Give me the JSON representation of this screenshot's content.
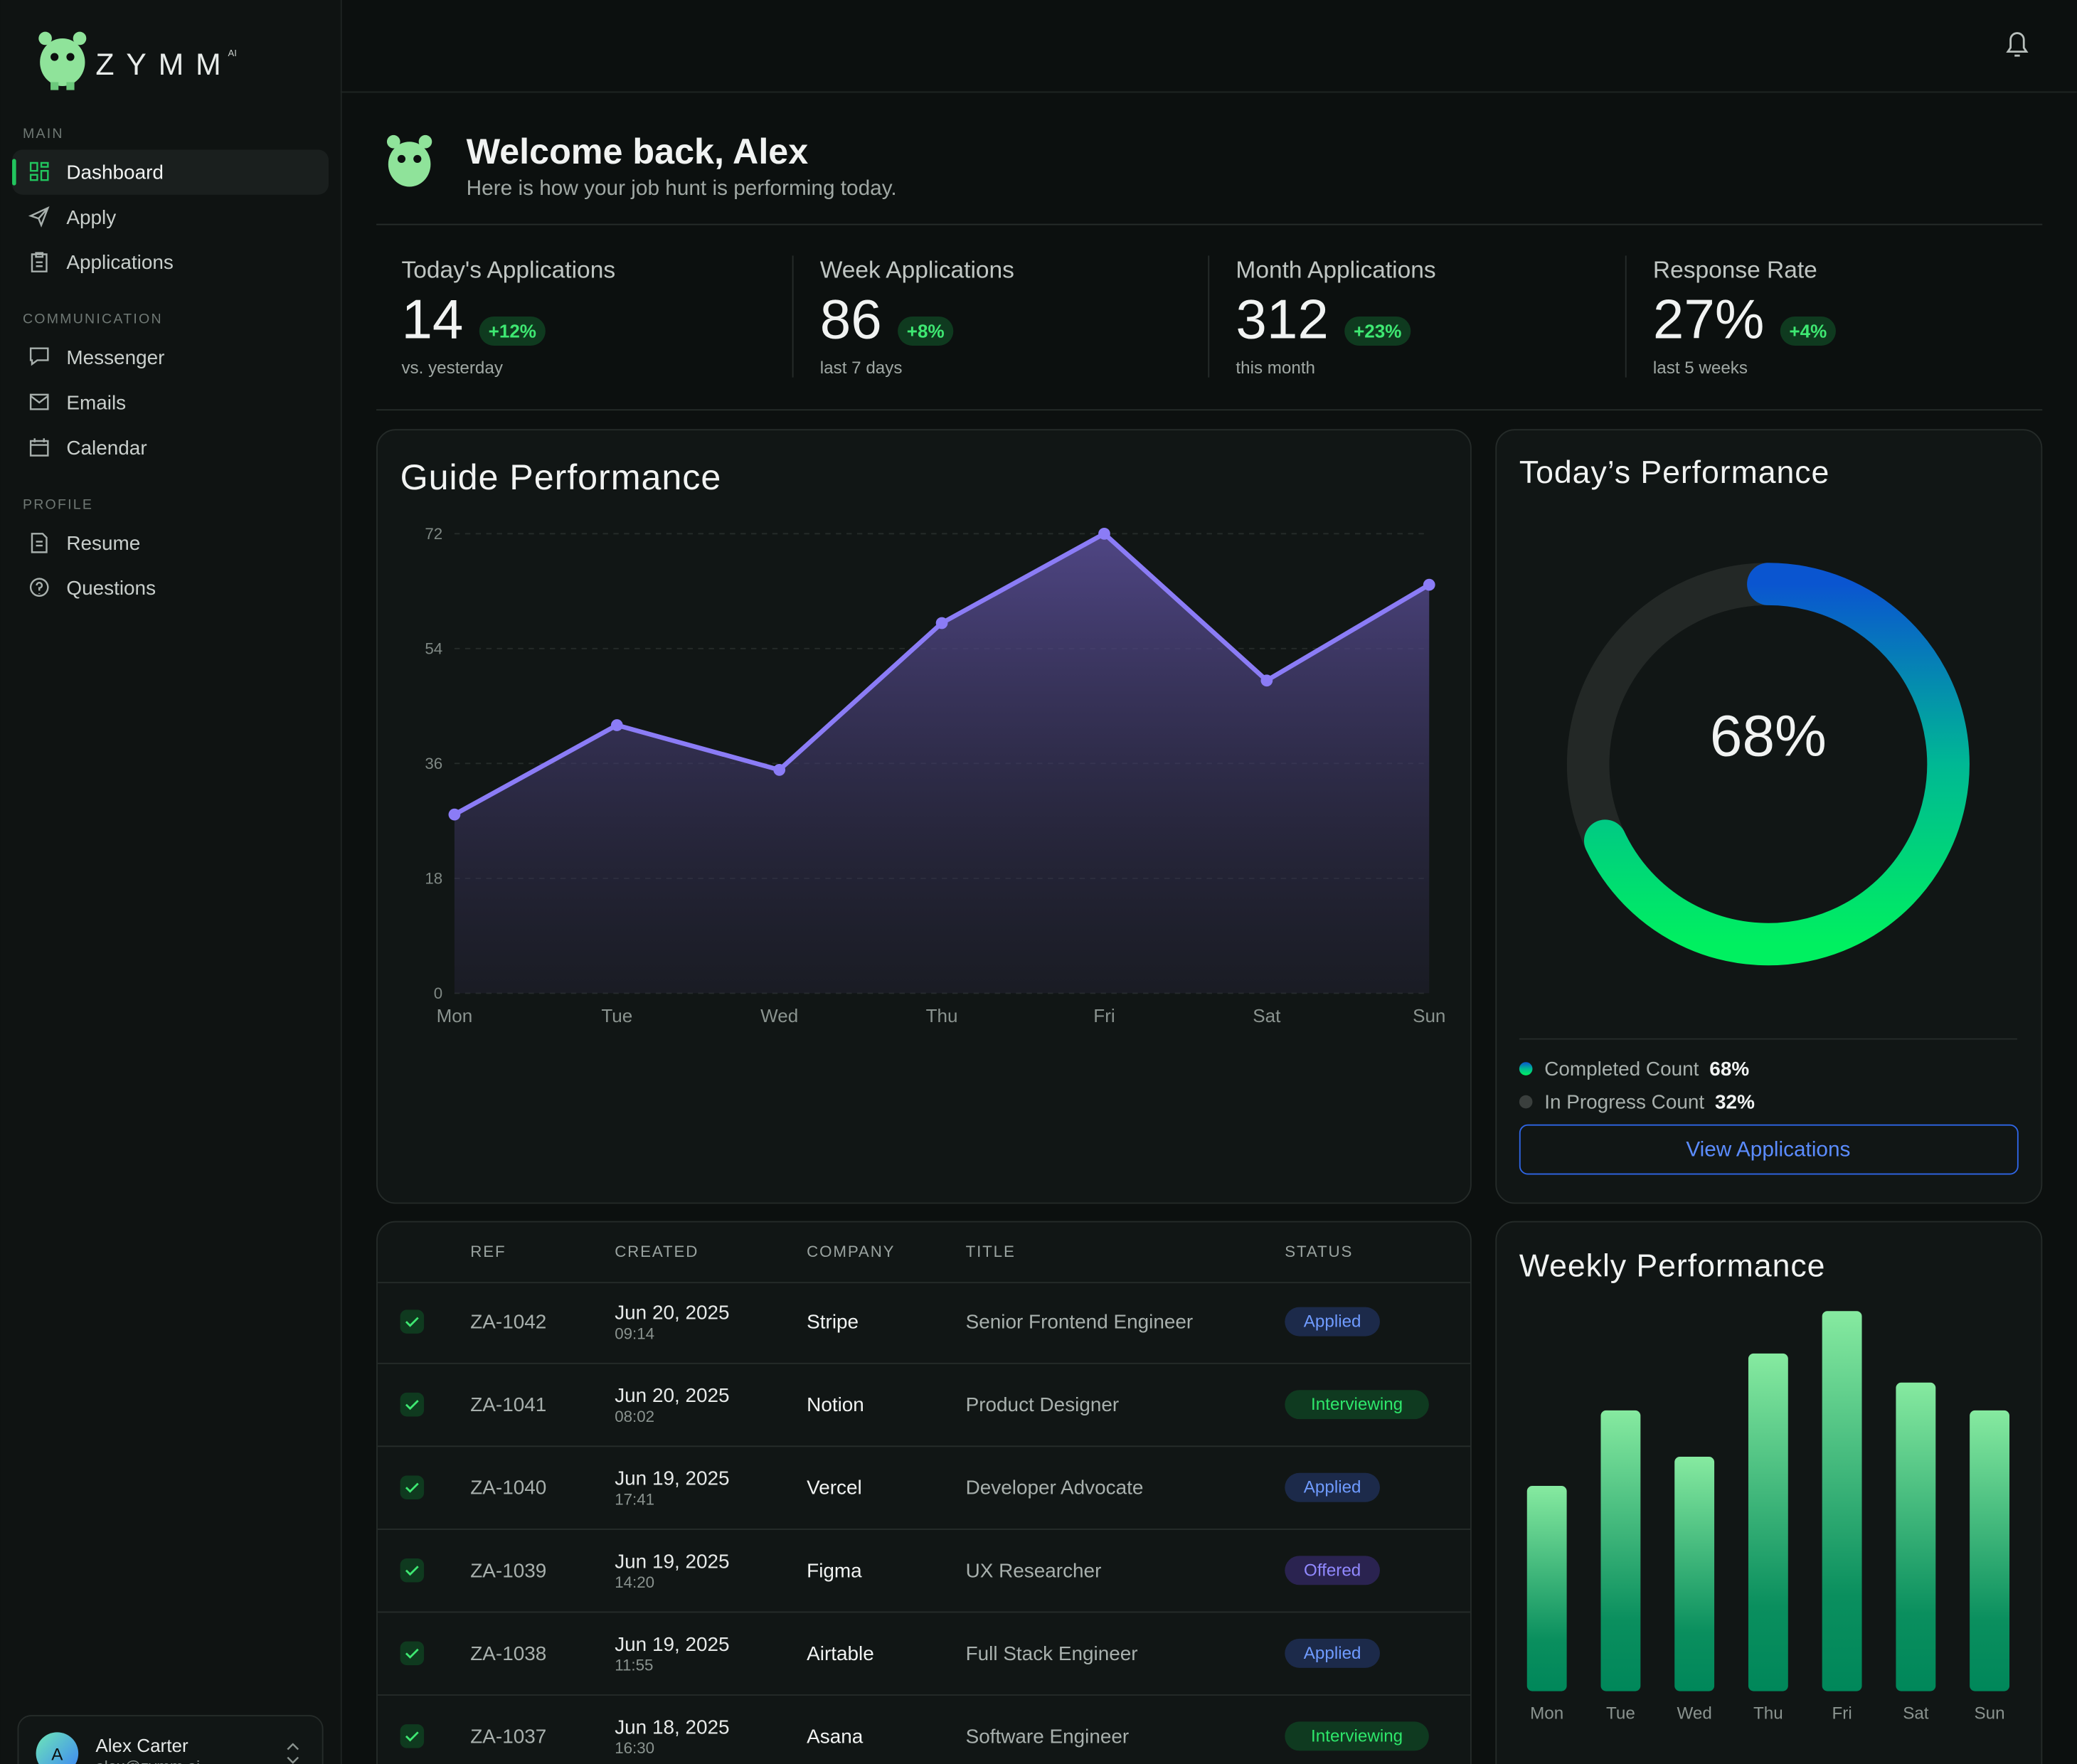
{
  "sidebar": {
    "logo": "ZYMM",
    "logo_badge": "AI",
    "sections": [
      {
        "title": "MAIN",
        "items": [
          "Dashboard",
          "Apply",
          "Applications"
        ]
      },
      {
        "title": "COMMUNICATION",
        "items": [
          "Messenger",
          "Emails",
          "Calendar"
        ]
      },
      {
        "title": "PROFILE",
        "items": [
          "Resume",
          "Questions"
        ]
      }
    ],
    "user": {
      "initial": "A",
      "name": "Alex Carter",
      "email": "alex@zymm.ai"
    }
  },
  "header": {
    "title": "Welcome back, Alex",
    "subtitle": "Here is how your job hunt is performing today."
  },
  "stats": [
    {
      "label": "Today's Applications",
      "value": "14",
      "change": "+12%",
      "note": "vs. yesterday"
    },
    {
      "label": "Week Applications",
      "value": "86",
      "change": "+8%",
      "note": "last 7 days"
    },
    {
      "label": "Month Applications",
      "value": "312",
      "change": "+23%",
      "note": "this month"
    },
    {
      "label": "Response Rate",
      "value": "27%",
      "change": "+4%",
      "note": "last 5 weeks"
    }
  ],
  "guide_performance": {
    "type": "line",
    "title": "Guide Performance",
    "categories": [
      "Mon",
      "Tue",
      "Wed",
      "Thu",
      "Fri",
      "Sat",
      "Sun"
    ],
    "values": [
      28,
      42,
      35,
      58,
      72,
      49,
      64
    ],
    "color": "#8b7cf6",
    "ylim": [
      0,
      72
    ],
    "yticks": [
      0,
      18,
      36,
      54,
      72
    ],
    "grid": true
  },
  "todays_performance": {
    "type": "donut",
    "title": "Today’s Performance",
    "series": [
      {
        "name": "Completed Count",
        "value": 68,
        "value_label": "68%",
        "color": "#0fa89a"
      },
      {
        "name": "In Progress Count",
        "value": 32,
        "value_label": "32%",
        "color": "#232826"
      }
    ],
    "button": "View Applications"
  },
  "table": {
    "columns": [
      "REF",
      "CREATED",
      "COMPANY",
      "TITLE",
      "STATUS"
    ],
    "rows": [
      [
        "ZA-1042",
        "Jun 20, 2025",
        "09:14",
        "Stripe",
        "Senior Frontend Engineer",
        "Applied"
      ],
      [
        "ZA-1041",
        "Jun 20, 2025",
        "08:02",
        "Notion",
        "Product Designer",
        "Interviewing"
      ],
      [
        "ZA-1040",
        "Jun 19, 2025",
        "17:41",
        "Vercel",
        "Developer Advocate",
        "Applied"
      ],
      [
        "ZA-1039",
        "Jun 19, 2025",
        "14:20",
        "Figma",
        "UX Researcher",
        "Offered"
      ],
      [
        "ZA-1038",
        "Jun 19, 2025",
        "11:55",
        "Airtable",
        "Full Stack Engineer",
        "Applied"
      ],
      [
        "ZA-1037",
        "Jun 18, 2025",
        "16:30",
        "Asana",
        "Software Engineer",
        "Interviewing"
      ]
    ]
  },
  "weekly_performance": {
    "type": "bar",
    "title": "Weekly Performance",
    "categories": [
      "Mon",
      "Tue",
      "Wed",
      "Thu",
      "Fri",
      "Sat",
      "Sun"
    ],
    "values": [
      155,
      212,
      177,
      255,
      287,
      233,
      212
    ]
  }
}
